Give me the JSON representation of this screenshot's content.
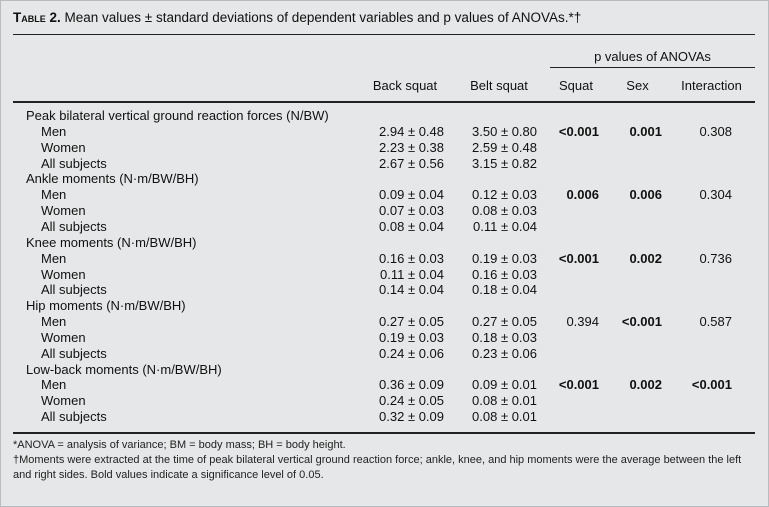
{
  "caption": {
    "label": "Table 2.",
    "text": " Mean values ± standard deviations of dependent variables and p values of ANOVAs.*†"
  },
  "columns": {
    "group": "p values of ANOVAs",
    "back": "Back squat",
    "belt": "Belt squat",
    "squat": "Squat",
    "sex": "Sex",
    "interaction": "Interaction"
  },
  "sections": [
    {
      "title": "Peak bilateral vertical ground reaction forces (N/BW)",
      "rows": [
        {
          "label": "Men",
          "back": "2.94 ± 0.48",
          "belt": "3.50 ± 0.80",
          "squat": "<0.001",
          "sex": "0.001",
          "interaction": "0.308"
        },
        {
          "label": "Women",
          "back": "2.23 ± 0.38",
          "belt": "2.59 ± 0.48"
        },
        {
          "label": "All subjects",
          "back": "2.67 ± 0.56",
          "belt": "3.15 ± 0.82"
        }
      ]
    },
    {
      "title": "Ankle moments (N·m/BW/BH)",
      "rows": [
        {
          "label": "Men",
          "back": "0.09 ± 0.04",
          "belt": "0.12 ± 0.03",
          "squat": "0.006",
          "sex": "0.006",
          "interaction": "0.304"
        },
        {
          "label": "Women",
          "back": "0.07 ± 0.03",
          "belt": "0.08 ± 0.03"
        },
        {
          "label": "All subjects",
          "back": "0.08 ± 0.04",
          "belt": "0.11 ± 0.04"
        }
      ]
    },
    {
      "title": "Knee moments (N·m/BW/BH)",
      "rows": [
        {
          "label": "Men",
          "back": "0.16 ± 0.03",
          "belt": "0.19 ± 0.03",
          "squat": "<0.001",
          "sex": "0.002",
          "interaction": "0.736"
        },
        {
          "label": "Women",
          "back": "0.11 ± 0.04",
          "belt": "0.16 ± 0.03"
        },
        {
          "label": "All subjects",
          "back": "0.14 ± 0.04",
          "belt": "0.18 ± 0.04"
        }
      ]
    },
    {
      "title": "Hip moments (N·m/BW/BH)",
      "rows": [
        {
          "label": "Men",
          "back": "0.27 ± 0.05",
          "belt": "0.27 ± 0.05",
          "squat": "0.394",
          "sex": "<0.001",
          "interaction": "0.587"
        },
        {
          "label": "Women",
          "back": "0.19 ± 0.03",
          "belt": "0.18 ± 0.03"
        },
        {
          "label": "All subjects",
          "back": "0.24 ± 0.06",
          "belt": "0.23 ± 0.06"
        }
      ]
    },
    {
      "title": "Low-back moments (N·m/BW/BH)",
      "rows": [
        {
          "label": "Men",
          "back": "0.36 ± 0.09",
          "belt": "0.09 ± 0.01",
          "squat": "<0.001",
          "sex": "0.002",
          "interaction": "<0.001"
        },
        {
          "label": "Women",
          "back": "0.24 ± 0.05",
          "belt": "0.08 ± 0.01"
        },
        {
          "label": "All subjects",
          "back": "0.32 ± 0.09",
          "belt": "0.08 ± 0.01"
        }
      ]
    }
  ],
  "footnotes": [
    "*ANOVA = analysis of variance; BM = body mass; BH = body height.",
    "†Moments were extracted at the time of peak bilateral vertical ground reaction force; ankle, knee, and hip moments were the average between the left and right sides. Bold values indicate a significance level of 0.05."
  ]
}
